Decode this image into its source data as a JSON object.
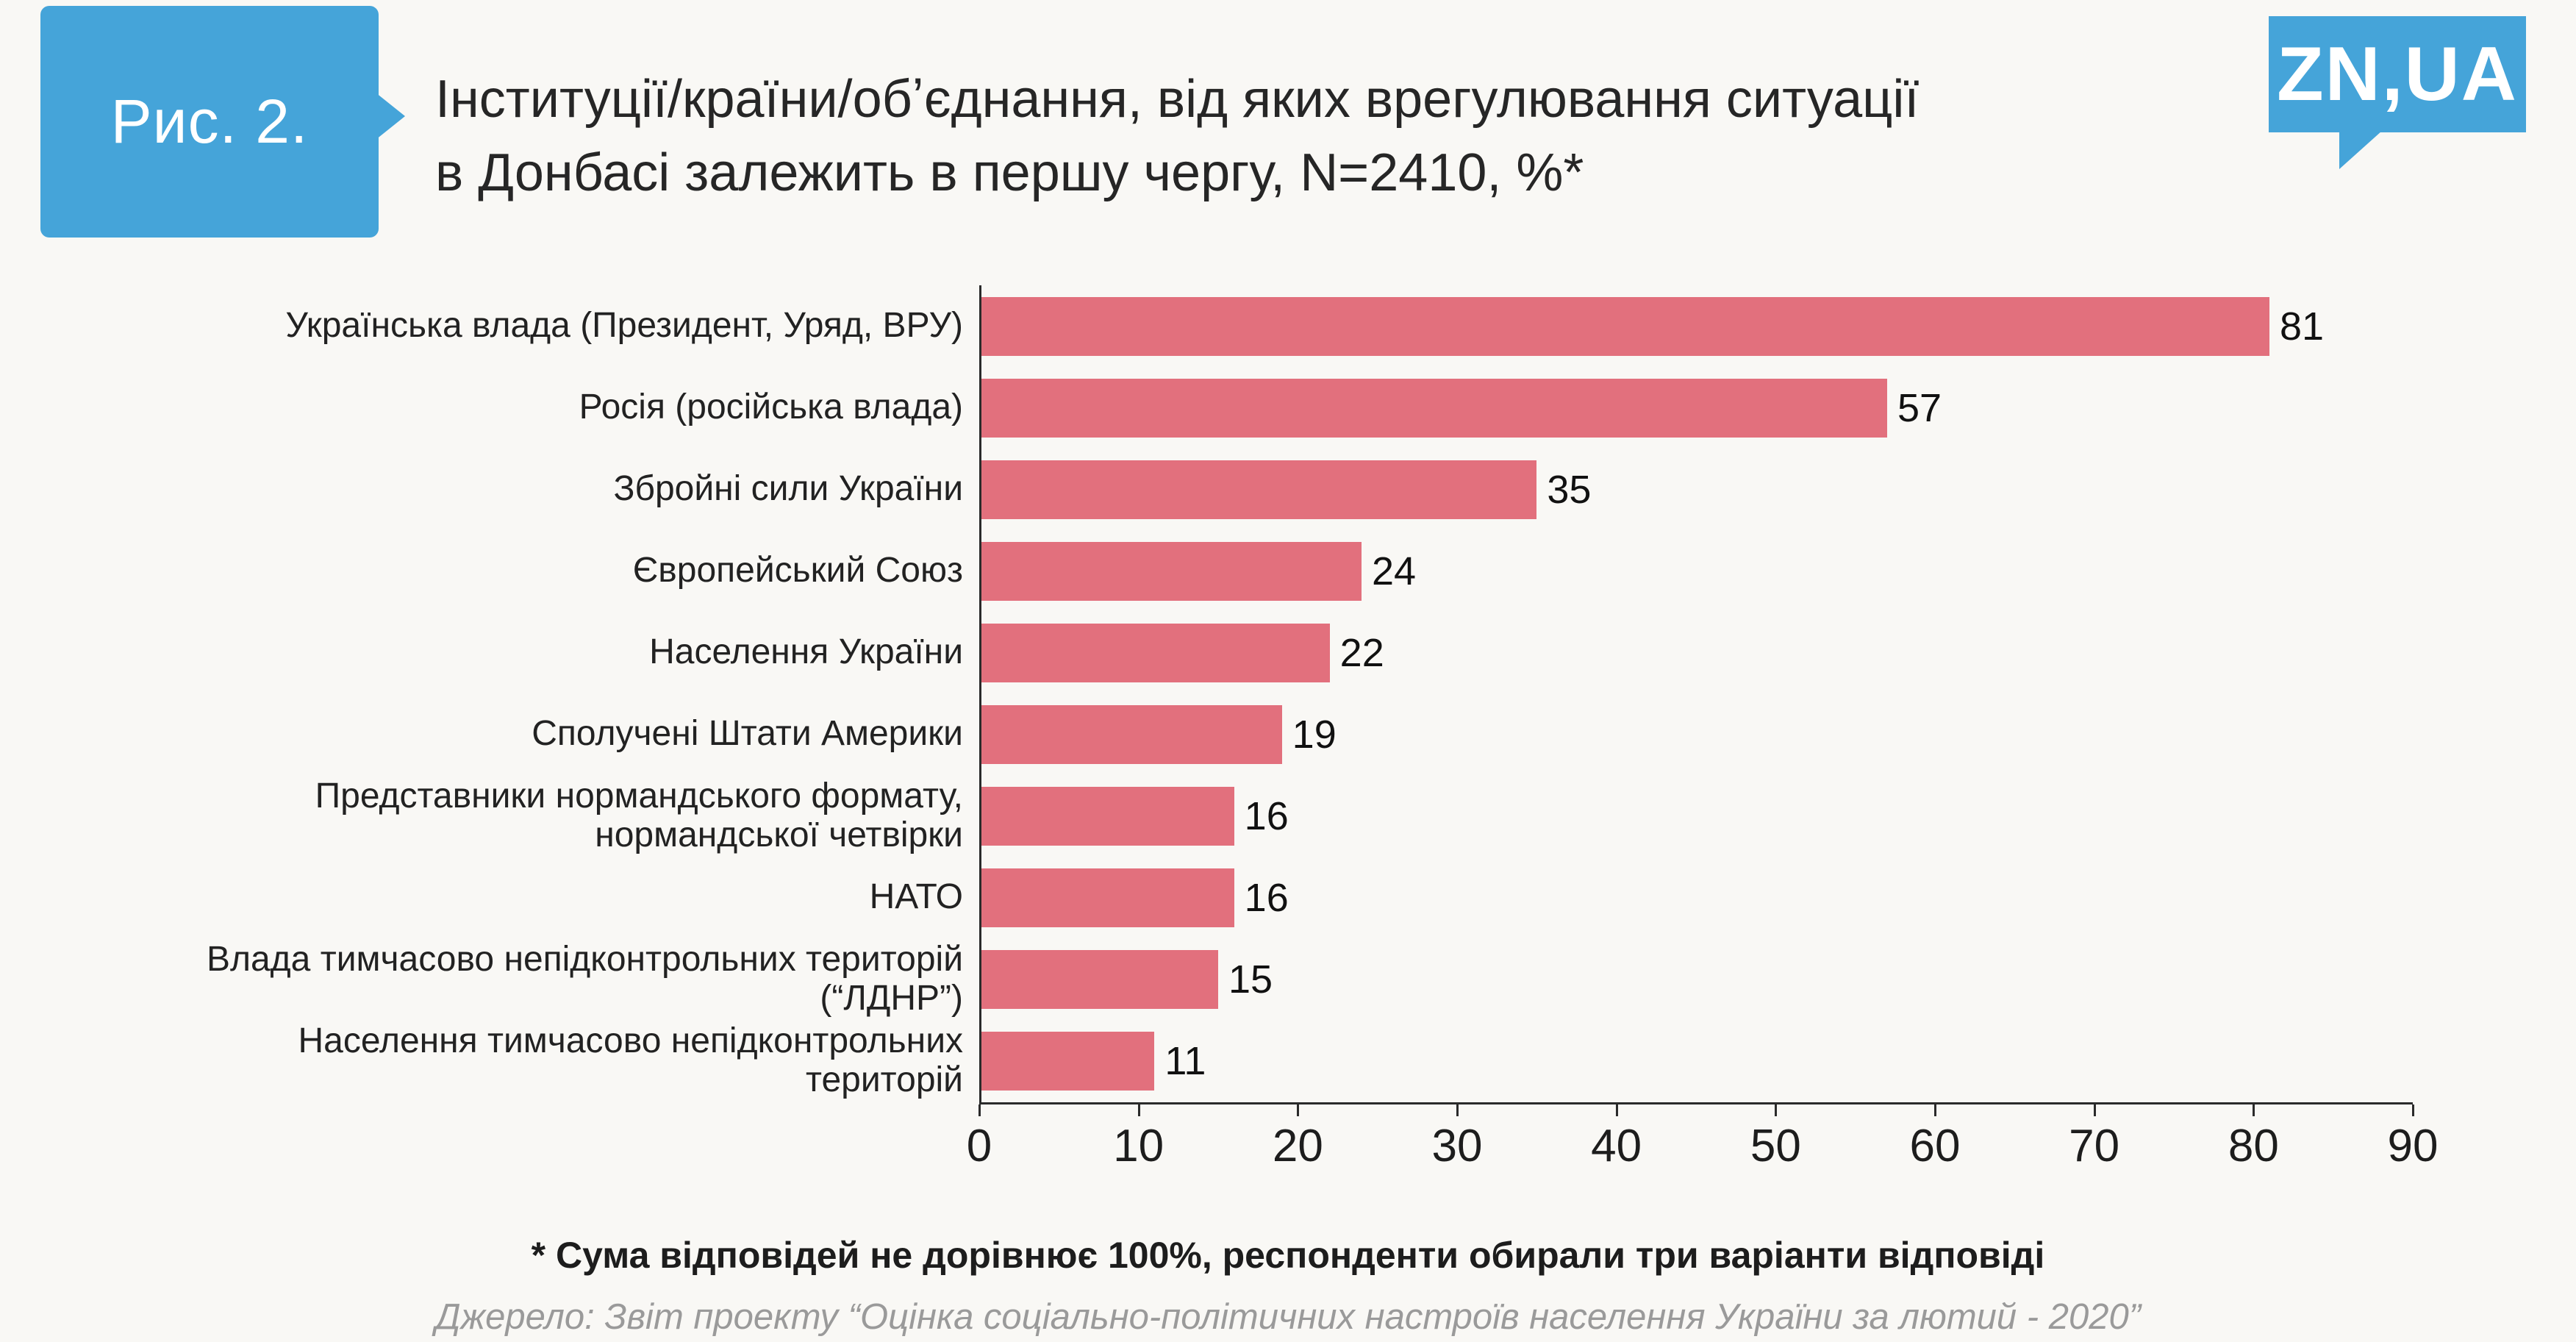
{
  "figure": {
    "label": "Рис. 2."
  },
  "title": "Інституції/країни/обʼєднання, від яких врегулювання ситуації в Донбасі залежить в першу чергу, N=2410, %*",
  "logo": {
    "text": "ZN,UA"
  },
  "chart_data": {
    "type": "bar",
    "orientation": "horizontal",
    "title": "Інституції/країни/обʼєднання, від яких врегулювання ситуації в Донбасі залежить в першу чергу, N=2410, %*",
    "categories": [
      "Українська влада (Президент, Уряд, ВРУ)",
      "Росія (російська влада)",
      "Збройні сили України",
      "Європейський Союз",
      "Населення України",
      "Сполучені Штати Америки",
      "Представники нормандського формату, нормандської четвірки",
      "НАТО",
      "Влада тимчасово непідконтрольних територій (“ЛДНР”)",
      "Населення тимчасово непідконтрольних територій"
    ],
    "values": [
      81,
      57,
      35,
      24,
      22,
      19,
      16,
      16,
      15,
      11
    ],
    "xlim": [
      0,
      90
    ],
    "xticks": [
      0,
      10,
      20,
      30,
      40,
      50,
      60,
      70,
      80,
      90
    ],
    "grid": false,
    "legend": false,
    "xlabel": "",
    "ylabel": ""
  },
  "footnote": "* Сума відповідей не дорівнює 100%, респонденти обирали три варіанти відповіді",
  "source": "Джерело: Звіт проекту “Оцінка соціально-політичних настроїв населення України за лютий - 2020”",
  "colors": {
    "accent-blue": "#45a4d9",
    "bar-pink": "#e2707d",
    "page-bg": "#f9f8f5",
    "axis-ink": "#2b2b2b",
    "title-ink": "#262626",
    "muted-text": "#9a9a9a"
  }
}
